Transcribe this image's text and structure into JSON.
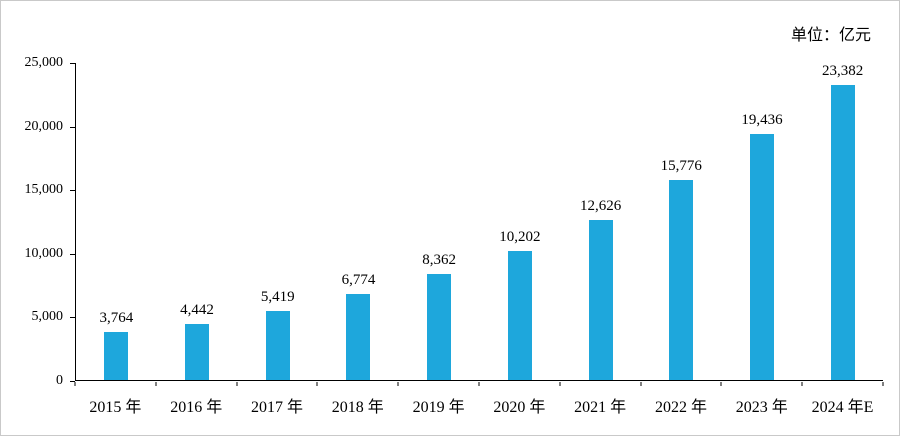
{
  "unit_label": "单位：亿元",
  "chart_data": {
    "type": "bar",
    "title": "",
    "xlabel": "",
    "ylabel": "",
    "unit": "单位：亿元",
    "categories": [
      "2015 年",
      "2016 年",
      "2017 年",
      "2018 年",
      "2019 年",
      "2020 年",
      "2021 年",
      "2022 年",
      "2023 年",
      "2024 年E"
    ],
    "values": [
      3764,
      4442,
      5419,
      6774,
      8362,
      10202,
      12626,
      15776,
      19436,
      23382
    ],
    "value_labels": [
      "3,764",
      "4,442",
      "5,419",
      "6,774",
      "8,362",
      "10,202",
      "12,626",
      "15,776",
      "19,436",
      "23,382"
    ],
    "ylim": [
      0,
      25000
    ],
    "yticks": [
      0,
      5000,
      10000,
      15000,
      20000,
      25000
    ],
    "ytick_labels": [
      "0",
      "5,000",
      "10,000",
      "15,000",
      "20,000",
      "25,000"
    ],
    "bar_color": "#1ea7dc",
    "grid": false,
    "legend": "none"
  }
}
